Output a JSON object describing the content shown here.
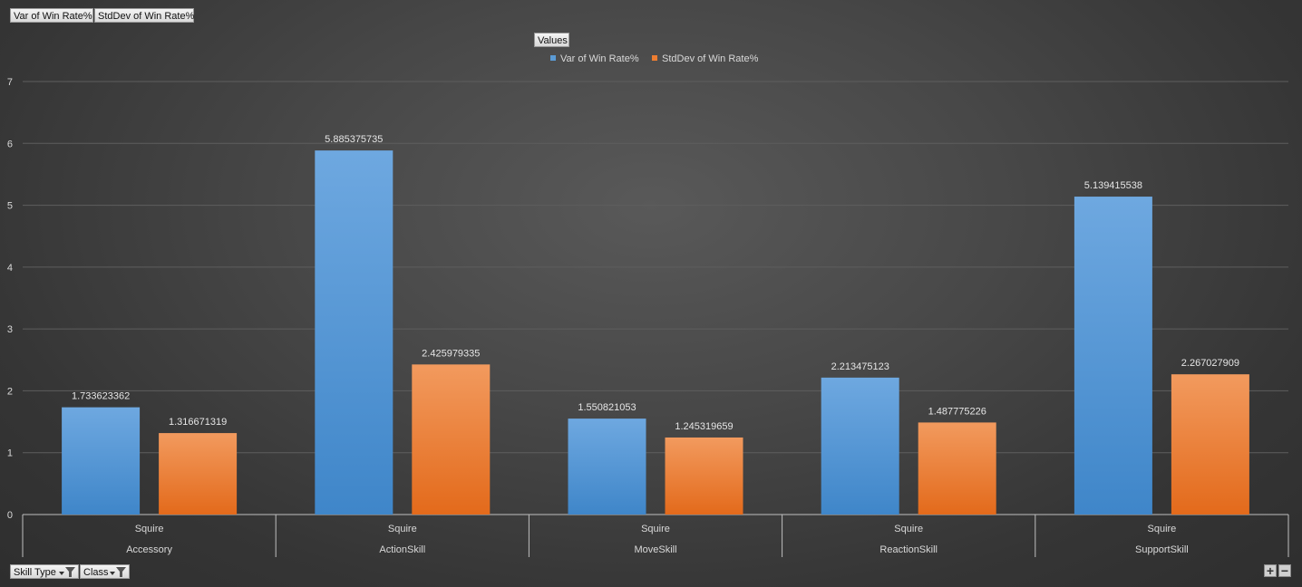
{
  "filter_fields": {
    "var_label": "Var of Win Rate%",
    "stddev_label": "StdDev of Win Rate%"
  },
  "legend": {
    "values_button": "Values"
  },
  "axis_fields": {
    "skill_type": "Skill Type",
    "class": "Class"
  },
  "zoom": {
    "in": "+",
    "out": "−"
  },
  "colors": {
    "var_series": "#5b9bd5",
    "stddev_series": "#ed7d31",
    "gridline": "#5e5e5e"
  },
  "chart_data": {
    "type": "bar",
    "ylim": [
      0,
      7
    ],
    "yticks": [
      "0",
      "1",
      "2",
      "3",
      "4",
      "5",
      "6",
      "7"
    ],
    "grid": true,
    "legend_position": "top-center",
    "categories": [
      {
        "class": "Squire",
        "skill_type": "Accessory"
      },
      {
        "class": "Squire",
        "skill_type": "ActionSkill"
      },
      {
        "class": "Squire",
        "skill_type": "MoveSkill"
      },
      {
        "class": "Squire",
        "skill_type": "ReactionSkill"
      },
      {
        "class": "Squire",
        "skill_type": "SupportSkill"
      }
    ],
    "series": [
      {
        "name": "Var of Win Rate%",
        "values": [
          1.733623362,
          5.885375735,
          1.550821053,
          2.213475123,
          5.139415538
        ],
        "labels": [
          "1.733623362",
          "5.885375735",
          "1.550821053",
          "2.213475123",
          "5.139415538"
        ]
      },
      {
        "name": "StdDev of Win Rate%",
        "values": [
          1.316671319,
          2.425979335,
          1.245319659,
          1.487775226,
          2.267027909
        ],
        "labels": [
          "1.316671319",
          "2.425979335",
          "1.245319659",
          "1.487775226",
          "2.267027909"
        ]
      }
    ]
  }
}
